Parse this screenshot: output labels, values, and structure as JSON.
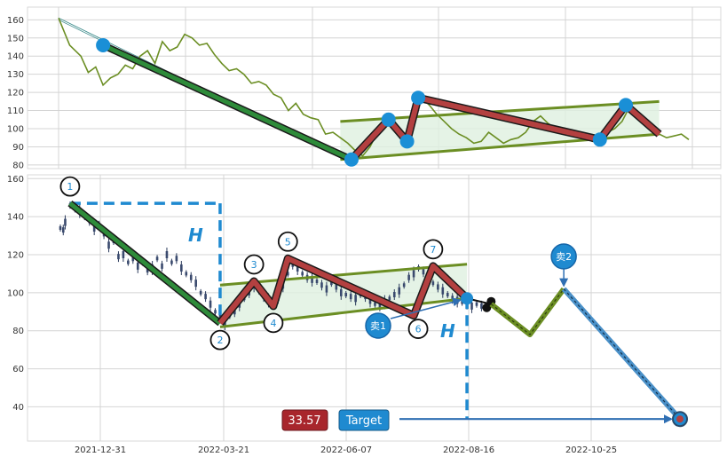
{
  "chart_data": [
    {
      "type": "line",
      "panel": "overview",
      "ylim": [
        78,
        167
      ],
      "yticks": [
        80,
        90,
        100,
        110,
        120,
        130,
        140,
        150,
        160
      ],
      "grid": true,
      "colors": {
        "price": "#6b8e23",
        "pattern": "#b34040",
        "trend": "#2e8b3a",
        "channel": "#6b8e23",
        "marker": "#1a8fd6",
        "fill": "#dff0e0"
      },
      "price_series": [
        [
          0,
          161
        ],
        [
          1.5,
          146
        ],
        [
          3,
          140
        ],
        [
          4,
          131
        ],
        [
          5,
          134
        ],
        [
          6,
          124
        ],
        [
          7,
          128
        ],
        [
          8,
          130
        ],
        [
          9,
          135
        ],
        [
          10,
          133
        ],
        [
          11,
          140
        ],
        [
          12,
          143
        ],
        [
          13,
          136
        ],
        [
          14,
          148
        ],
        [
          15,
          143
        ],
        [
          16,
          145
        ],
        [
          17,
          152
        ],
        [
          18,
          150
        ],
        [
          19,
          146
        ],
        [
          20,
          147
        ],
        [
          21,
          141
        ],
        [
          22,
          136
        ],
        [
          23,
          132
        ],
        [
          24,
          133
        ],
        [
          25,
          130
        ],
        [
          26,
          125
        ],
        [
          27,
          126
        ],
        [
          28,
          124
        ],
        [
          29,
          119
        ],
        [
          30,
          117
        ],
        [
          31,
          110
        ],
        [
          32,
          114
        ],
        [
          33,
          108
        ],
        [
          34,
          106
        ],
        [
          35,
          105
        ],
        [
          36,
          97
        ],
        [
          37,
          98
        ],
        [
          38,
          95
        ],
        [
          39,
          92
        ],
        [
          40,
          88
        ],
        [
          41,
          85
        ],
        [
          42,
          90
        ],
        [
          43,
          98
        ],
        [
          44,
          104
        ],
        [
          45,
          106
        ],
        [
          46,
          100
        ],
        [
          47,
          93
        ],
        [
          48,
          105
        ],
        [
          49,
          117
        ],
        [
          50,
          113
        ],
        [
          51,
          108
        ],
        [
          52,
          104
        ],
        [
          53,
          100
        ],
        [
          54,
          97
        ],
        [
          55,
          95
        ],
        [
          56,
          92
        ],
        [
          57,
          93
        ],
        [
          58,
          98
        ],
        [
          59,
          95
        ],
        [
          60,
          92
        ],
        [
          61,
          94
        ],
        [
          62,
          95
        ],
        [
          63,
          98
        ],
        [
          64,
          104
        ],
        [
          65,
          107
        ],
        [
          66,
          103
        ],
        [
          67,
          100
        ],
        [
          68,
          97
        ],
        [
          69,
          96
        ],
        [
          70,
          97
        ],
        [
          71,
          95
        ],
        [
          72,
          93
        ],
        [
          73,
          95
        ],
        [
          74,
          98
        ],
        [
          75,
          100
        ],
        [
          76,
          104
        ],
        [
          77,
          112
        ],
        [
          78,
          107
        ],
        [
          79,
          103
        ],
        [
          80,
          100
        ],
        [
          81,
          97
        ],
        [
          82,
          95
        ],
        [
          83,
          96
        ],
        [
          84,
          97
        ],
        [
          85,
          94
        ]
      ],
      "pattern_points": [
        [
          6,
          146
        ],
        [
          39.5,
          83
        ],
        [
          44.5,
          105
        ],
        [
          47,
          93
        ],
        [
          48.5,
          117
        ],
        [
          73,
          94
        ],
        [
          76.5,
          113
        ],
        [
          81,
          97
        ]
      ],
      "trend_line": [
        [
          6,
          146
        ],
        [
          39.5,
          83
        ]
      ],
      "channel_upper": [
        [
          38,
          104
        ],
        [
          81,
          115
        ]
      ],
      "channel_lower": [
        [
          38,
          83
        ],
        [
          81,
          97
        ]
      ],
      "faint_lines": [
        [
          [
            0,
            161
          ],
          [
            38,
            85
          ]
        ],
        [
          [
            0,
            160
          ],
          [
            38,
            84
          ]
        ]
      ]
    },
    {
      "type": "candlestick",
      "panel": "main",
      "ylim": [
        22,
        162
      ],
      "yticks": [
        40,
        60,
        80,
        100,
        120,
        140,
        160
      ],
      "x_tick_labels": [
        "2021-12-31",
        "2022-03-21",
        "2022-06-07",
        "2022-08-16",
        "2022-10-25"
      ],
      "grid": true,
      "candles": [
        [
          0,
          134
        ],
        [
          0.3,
          133
        ],
        [
          0.5,
          137
        ],
        [
          1,
          146
        ],
        [
          1.5,
          145
        ],
        [
          2,
          143
        ],
        [
          2.5,
          140
        ],
        [
          3,
          138
        ],
        [
          3.5,
          134
        ],
        [
          4,
          136
        ],
        [
          4.5,
          131
        ],
        [
          5,
          125
        ],
        [
          5.5,
          127
        ],
        [
          6,
          119
        ],
        [
          6.5,
          120
        ],
        [
          7,
          116
        ],
        [
          7.5,
          118
        ],
        [
          8,
          114
        ],
        [
          8.5,
          116
        ],
        [
          9,
          112
        ],
        [
          9.5,
          113
        ],
        [
          10,
          118
        ],
        [
          10.5,
          114
        ],
        [
          11,
          120
        ],
        [
          11.5,
          116
        ],
        [
          12,
          118
        ],
        [
          12.5,
          113
        ],
        [
          13,
          110
        ],
        [
          13.5,
          108
        ],
        [
          14,
          105
        ],
        [
          14.5,
          100
        ],
        [
          15,
          98
        ],
        [
          15.5,
          94
        ],
        [
          16,
          90
        ],
        [
          16.5,
          87
        ],
        [
          17,
          84
        ],
        [
          17.5,
          88
        ],
        [
          18,
          90
        ],
        [
          18.5,
          94
        ],
        [
          19,
          97
        ],
        [
          19.5,
          100
        ],
        [
          20,
          104
        ],
        [
          20.5,
          101
        ],
        [
          21,
          98
        ],
        [
          21.5,
          96
        ],
        [
          22,
          93
        ],
        [
          22.5,
          97
        ],
        [
          23,
          104
        ],
        [
          23.5,
          110
        ],
        [
          24,
          115
        ],
        [
          24.5,
          113
        ],
        [
          25,
          110
        ],
        [
          25.5,
          108
        ],
        [
          26,
          107
        ],
        [
          26.5,
          106
        ],
        [
          27,
          104
        ],
        [
          27.5,
          102
        ],
        [
          28,
          105
        ],
        [
          28.5,
          103
        ],
        [
          29,
          100
        ],
        [
          29.5,
          99
        ],
        [
          30,
          98
        ],
        [
          30.5,
          97
        ],
        [
          31,
          99
        ],
        [
          31.5,
          98
        ],
        [
          32,
          96
        ],
        [
          32.5,
          94
        ],
        [
          33,
          93
        ],
        [
          33.5,
          95
        ],
        [
          34,
          97
        ],
        [
          34.5,
          99
        ],
        [
          35,
          101
        ],
        [
          35.5,
          104
        ],
        [
          36,
          108
        ],
        [
          36.5,
          110
        ],
        [
          37,
          113
        ],
        [
          37.5,
          111
        ],
        [
          38,
          108
        ],
        [
          38.5,
          105
        ],
        [
          39,
          103
        ],
        [
          39.5,
          101
        ],
        [
          40,
          99
        ],
        [
          40.5,
          97
        ],
        [
          41,
          96
        ],
        [
          41.5,
          95
        ],
        [
          42,
          94
        ],
        [
          42.5,
          93
        ],
        [
          43,
          94
        ],
        [
          43.5,
          93
        ]
      ],
      "pattern_points": [
        [
          1,
          147
        ],
        [
          16.5,
          84
        ],
        [
          20,
          106
        ],
        [
          22,
          93
        ],
        [
          23.5,
          118
        ],
        [
          36.5,
          88
        ],
        [
          38.5,
          114
        ],
        [
          42,
          97
        ]
      ],
      "point_labels": [
        "1",
        "2",
        "3",
        "4",
        "5",
        "6",
        "7"
      ],
      "trend_line": [
        [
          1,
          147
        ],
        [
          16.5,
          84
        ]
      ],
      "channel_upper": [
        [
          16.5,
          104
        ],
        [
          42,
          115
        ]
      ],
      "channel_lower": [
        [
          16.5,
          82
        ],
        [
          42,
          97
        ]
      ],
      "height_bracket": {
        "top": 147,
        "bottom": 84,
        "label": "H"
      },
      "projection": {
        "path": [
          [
            42,
            97
          ],
          [
            44.5,
            94
          ],
          [
            48.5,
            78
          ],
          [
            52,
            102
          ],
          [
            64,
            33.57
          ]
        ],
        "second_height_label": "H",
        "sell_labels": [
          "卖1",
          "卖2"
        ],
        "target_value": "33.57",
        "target_label": "Target"
      }
    }
  ]
}
